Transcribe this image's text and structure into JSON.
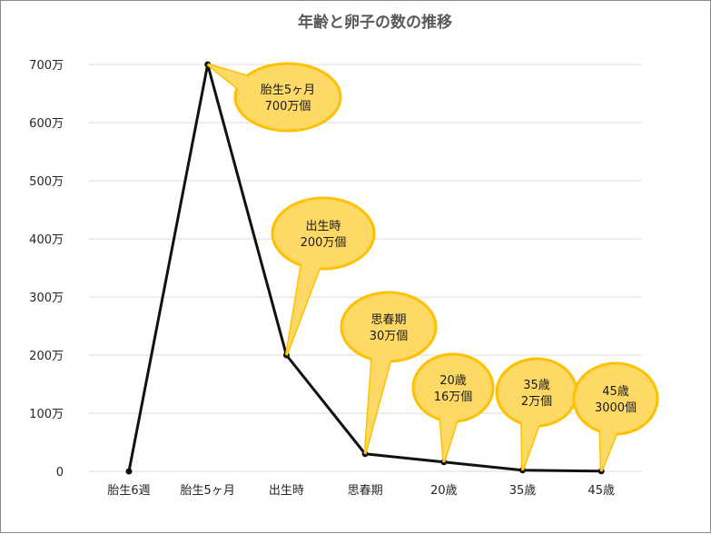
{
  "chart_data": {
    "type": "line",
    "title": "年齢と卵子の数の推移",
    "xlabel": "",
    "ylabel": "",
    "categories": [
      "胎生6週",
      "胎生5ヶ月",
      "出生時",
      "思春期",
      "20歳",
      "35歳",
      "45歳"
    ],
    "series": [
      {
        "values": [
          0,
          7000000,
          2000000,
          300000,
          160000,
          20000,
          3000
        ]
      }
    ],
    "ylim": [
      0,
      7000000
    ],
    "y_ticks": [
      {
        "value": 0,
        "label": "0"
      },
      {
        "value": 1000000,
        "label": "100万"
      },
      {
        "value": 2000000,
        "label": "200万"
      },
      {
        "value": 3000000,
        "label": "300万"
      },
      {
        "value": 4000000,
        "label": "400万"
      },
      {
        "value": 5000000,
        "label": "500万"
      },
      {
        "value": 6000000,
        "label": "600万"
      },
      {
        "value": 7000000,
        "label": "700万"
      }
    ],
    "grid": true,
    "line_color": "#111111",
    "callout_fill": "#ffd966",
    "callout_border": "#ffc000",
    "annotations": [
      {
        "point_index": 1,
        "lines": [
          "胎生5ヶ月",
          "700万個"
        ]
      },
      {
        "point_index": 2,
        "lines": [
          "出生時",
          "200万個"
        ]
      },
      {
        "point_index": 3,
        "lines": [
          "思春期",
          "30万個"
        ]
      },
      {
        "point_index": 4,
        "lines": [
          "20歳",
          "16万個"
        ]
      },
      {
        "point_index": 5,
        "lines": [
          "35歳",
          "2万個"
        ]
      },
      {
        "point_index": 6,
        "lines": [
          "45歳",
          "3000個"
        ]
      }
    ]
  }
}
